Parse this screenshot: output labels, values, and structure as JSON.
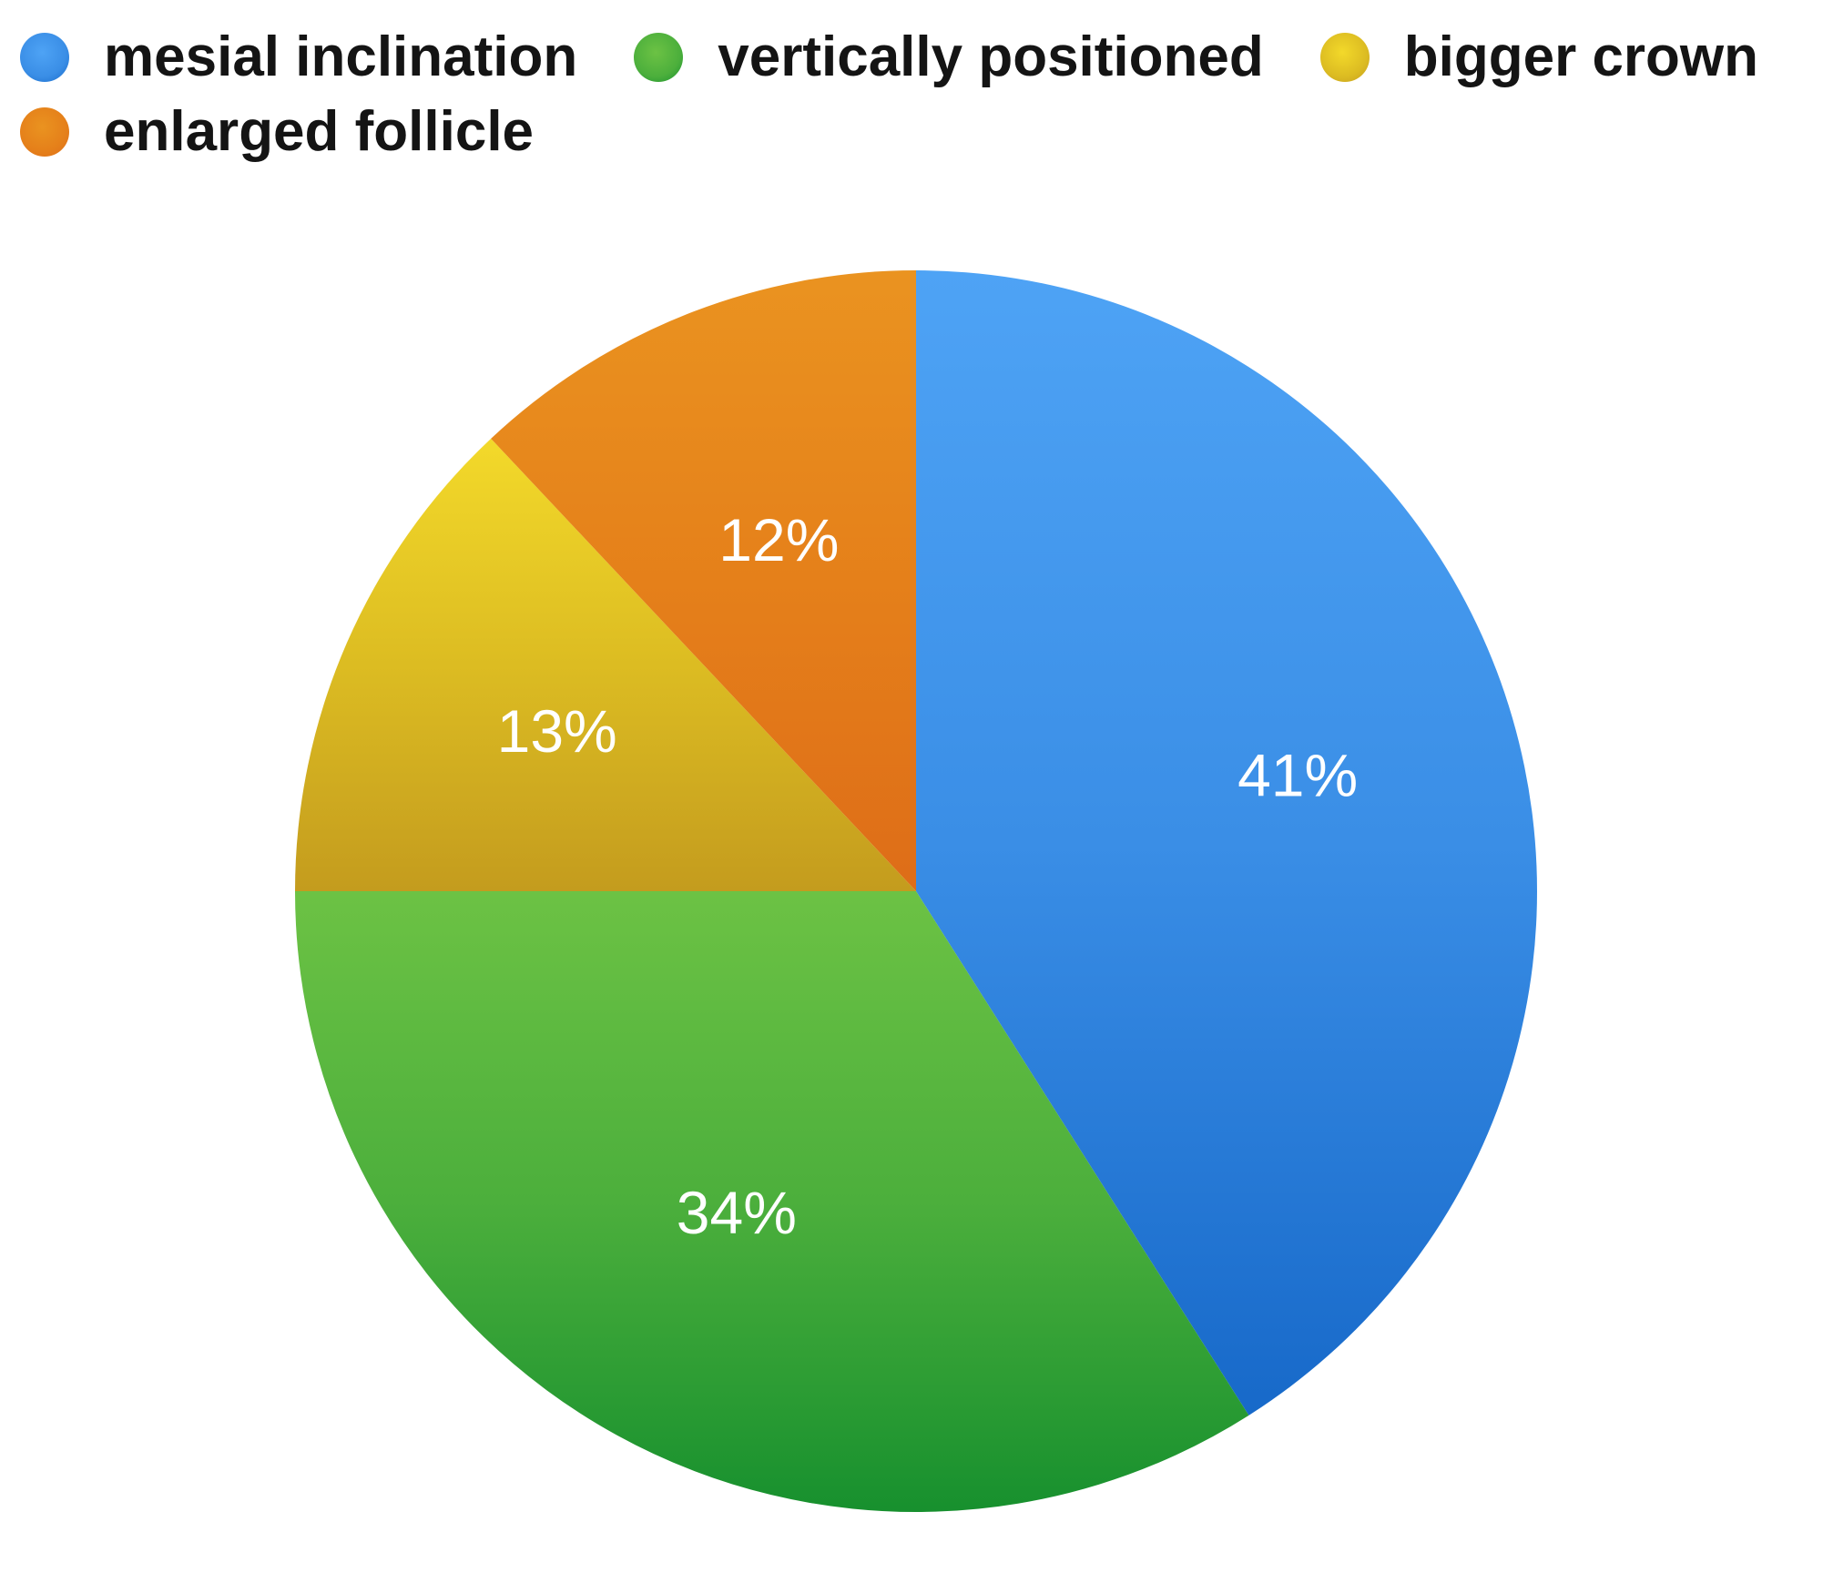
{
  "chart_data": {
    "type": "pie",
    "title": "",
    "legend_position": "top",
    "slices": [
      {
        "name": "mesial inclination",
        "value": 41,
        "label": "41%",
        "color": "#3a8ee6",
        "color_light": "#4ea3f5",
        "color_dark": "#1769c9"
      },
      {
        "name": "vertically positioned",
        "value": 34,
        "label": "34%",
        "color": "#4caf3c",
        "color_light": "#6cc244",
        "color_dark": "#17902e"
      },
      {
        "name": "bigger crown",
        "value": 13,
        "label": "13%",
        "color": "#dcbc22",
        "color_light": "#f3d92a",
        "color_dark": "#c49c1e"
      },
      {
        "name": "enlarged follicle",
        "value": 12,
        "label": "12%",
        "color": "#e5801a",
        "color_light": "#ea9320",
        "color_dark": "#de6d18"
      }
    ]
  }
}
